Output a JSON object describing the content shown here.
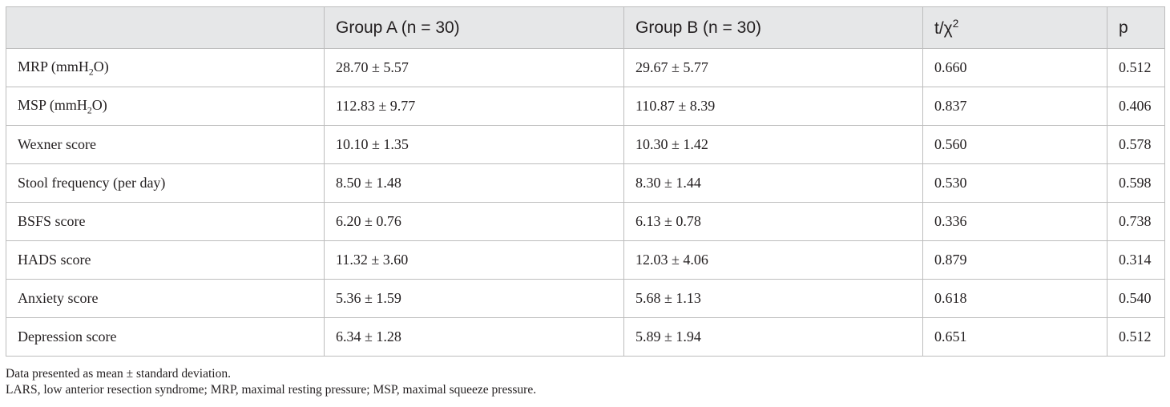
{
  "table": {
    "headers": [
      {
        "text": "",
        "sup": ""
      },
      {
        "text": "Group A (n = 30)",
        "sup": ""
      },
      {
        "text": "Group B (n = 30)",
        "sup": ""
      },
      {
        "text": "t/χ",
        "sup": "2"
      },
      {
        "text": "p",
        "sup": ""
      }
    ],
    "rows": [
      {
        "label": "MRP (mmH",
        "label_sub": "2",
        "label_after": "O)",
        "group_a": "28.70 ± 5.57",
        "group_b": "29.67 ± 5.77",
        "t": "0.660",
        "p": "0.512"
      },
      {
        "label": "MSP (mmH",
        "label_sub": "2",
        "label_after": "O)",
        "group_a": "112.83 ± 9.77",
        "group_b": "110.87 ± 8.39",
        "t": "0.837",
        "p": "0.406"
      },
      {
        "label": "Wexner score",
        "label_sub": "",
        "label_after": "",
        "group_a": "10.10 ± 1.35",
        "group_b": "10.30 ± 1.42",
        "t": "0.560",
        "p": "0.578"
      },
      {
        "label": "Stool frequency (per day)",
        "label_sub": "",
        "label_after": "",
        "group_a": "8.50 ± 1.48",
        "group_b": "8.30 ± 1.44",
        "t": "0.530",
        "p": "0.598"
      },
      {
        "label": "BSFS score",
        "label_sub": "",
        "label_after": "",
        "group_a": "6.20 ± 0.76",
        "group_b": "6.13 ± 0.78",
        "t": "0.336",
        "p": "0.738"
      },
      {
        "label": "HADS score",
        "label_sub": "",
        "label_after": "",
        "group_a": "11.32 ± 3.60",
        "group_b": "12.03 ± 4.06",
        "t": "0.879",
        "p": "0.314"
      },
      {
        "label": "Anxiety score",
        "label_sub": "",
        "label_after": "",
        "group_a": "5.36 ± 1.59",
        "group_b": "5.68 ± 1.13",
        "t": "0.618",
        "p": "0.540"
      },
      {
        "label": "Depression score",
        "label_sub": "",
        "label_after": "",
        "group_a": "6.34 ± 1.28",
        "group_b": "5.89 ± 1.94",
        "t": "0.651",
        "p": "0.512"
      }
    ]
  },
  "footnotes": {
    "line1": "Data presented as mean ± standard deviation.",
    "line2": "LARS, low anterior resection syndrome; MRP, maximal resting pressure; MSP, maximal squeeze pressure."
  },
  "colors": {
    "header_bg": "#e6e7e8",
    "border": "#bdbdbd",
    "text": "#231f20"
  }
}
